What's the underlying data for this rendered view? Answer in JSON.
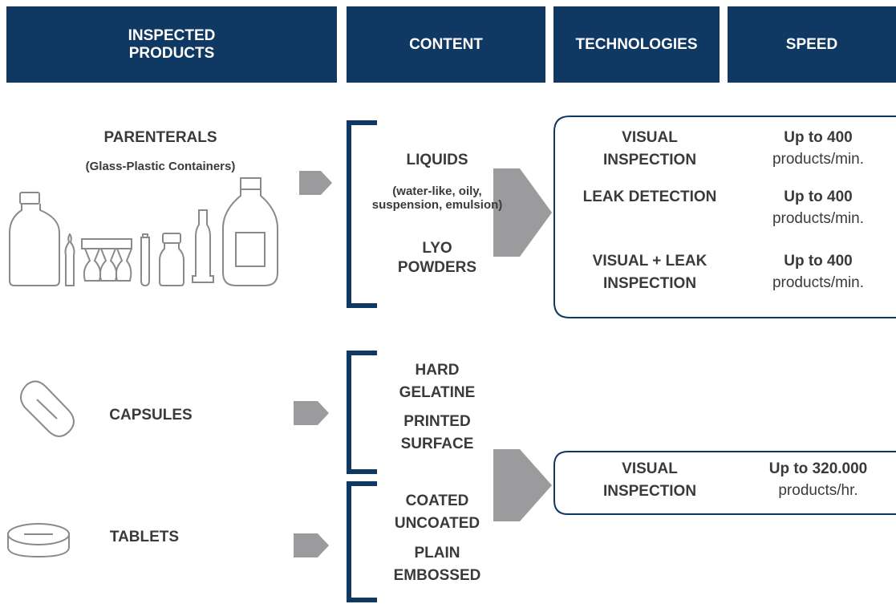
{
  "header": {
    "columns": [
      "INSPECTED PRODUCTS",
      "CONTENT",
      "TECHNOLOGIES",
      "SPEED"
    ]
  },
  "groups": [
    {
      "products": [
        {
          "name": "PARENTERALS",
          "note": "(Glass-Plastic Containers)"
        }
      ],
      "content": [
        "LIQUIDS",
        "(water-like, oily, suspension, emulsion)",
        "LYO POWDERS"
      ],
      "technologies": [
        {
          "name": "VISUAL INSPECTION",
          "speed": "Up to 400",
          "unit": "products/min."
        },
        {
          "name": "LEAK DETECTION",
          "speed": "Up to 400",
          "unit": "products/min."
        },
        {
          "name": "VISUAL + LEAK INSPECTION",
          "speed": "Up to 400",
          "unit": "products/min."
        }
      ]
    },
    {
      "products": [
        {
          "name": "CAPSULES"
        },
        {
          "name": "TABLETS"
        }
      ],
      "content": [
        "HARD GELATINE",
        "PRINTED SURFACE",
        "COATED UNCOATED",
        "PLAIN EMBOSSED"
      ],
      "technologies": [
        {
          "name": "VISUAL INSPECTION",
          "speed": "Up to 320.000",
          "unit": "products/hr."
        }
      ]
    }
  ]
}
